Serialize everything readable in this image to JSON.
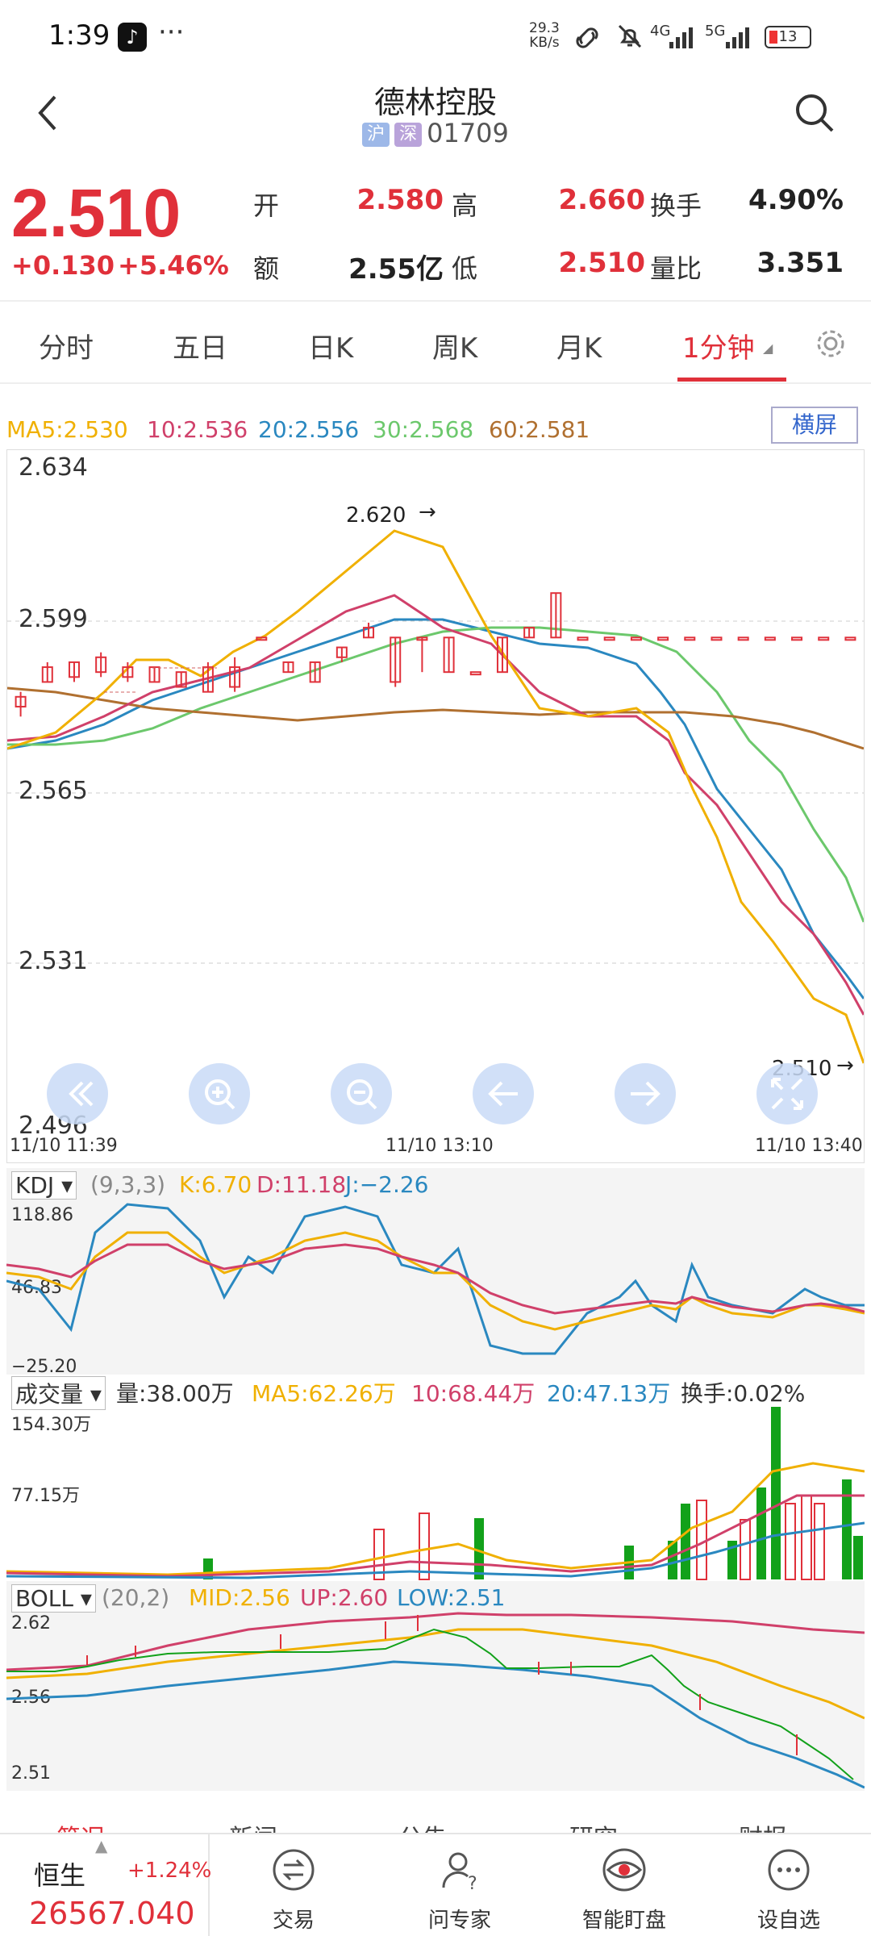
{
  "status_bar": {
    "time": "1:39",
    "dots": "···",
    "net_speed_top": "29.3",
    "net_speed_bottom": "KB/s",
    "sig4g": "4G",
    "sig5g": "5G",
    "battery": "13",
    "app_icon": "tiktok-icon"
  },
  "header": {
    "title": "德林控股",
    "tag_sh": "沪",
    "tag_sz": "深",
    "code": "01709"
  },
  "quote": {
    "price": "2.510",
    "change": "+0.130",
    "change_pct": "+5.46%",
    "open_label": "开",
    "open": "2.580",
    "high_label": "高",
    "high": "2.660",
    "turnover_label": "换手",
    "turnover": "4.90%",
    "amount_label": "额",
    "amount": "2.55亿",
    "low_label": "低",
    "low": "2.510",
    "vol_ratio_label": "量比",
    "vol_ratio": "3.351"
  },
  "tabs": [
    "分时",
    "五日",
    "日K",
    "周K",
    "月K",
    "1分钟"
  ],
  "active_tab": "1分钟",
  "ma_legend": {
    "ma5": "MA5:2.530",
    "ma10": "10:2.536",
    "ma20": "20:2.556",
    "ma30": "30:2.568",
    "ma60": "60:2.581"
  },
  "landscape_button": "横屏",
  "price_axis": [
    "2.634",
    "2.599",
    "2.565",
    "2.531",
    "2.496"
  ],
  "time_axis": [
    "11/10 11:39",
    "11/10 13:10",
    "11/10 13:40"
  ],
  "annotations": {
    "max": "2.620",
    "last": "2.510"
  },
  "kdj": {
    "name": "KDJ",
    "params": "(9,3,3)",
    "k": "K:6.70",
    "d": "D:11.18",
    "j": "J:−2.26",
    "axis": [
      "118.86",
      "46.83",
      "−25.20"
    ]
  },
  "volume": {
    "name": "成交量",
    "vol": "量:38.00万",
    "ma5": "MA5:62.26万",
    "ma10": "10:68.44万",
    "ma20": "20:47.13万",
    "turn": "换手:0.02%",
    "axis": [
      "154.30万",
      "77.15万"
    ]
  },
  "boll": {
    "name": "BOLL",
    "params": "(20,2)",
    "mid": "MID:2.56",
    "up": "UP:2.60",
    "low": "LOW:2.51",
    "axis": [
      "2.62",
      "2.56",
      "2.51"
    ]
  },
  "news_tabs": [
    "简况",
    "新闻",
    "公告",
    "研究",
    "财报"
  ],
  "bottom_nav": {
    "index_name": "恒生",
    "index_change": "+1.24%",
    "index_value": "26567.040",
    "items": [
      "交易",
      "问专家",
      "智能盯盘",
      "设自选"
    ]
  },
  "colors": {
    "up": "#e0303a",
    "down": "#12a11a",
    "ma5": "#f0b000",
    "ma10": "#d0406a",
    "ma20": "#2a88c0",
    "ma30": "#6cc86c",
    "ma60": "#b07030"
  },
  "chart_data": {
    "type": "candlestick",
    "candles": [
      [
        2.585,
        2.587,
        2.583,
        2.588
      ],
      [
        2.59,
        2.593,
        2.59,
        2.594
      ],
      [
        2.591,
        2.594,
        2.59,
        2.594
      ],
      [
        2.592,
        2.595,
        2.591,
        2.596
      ],
      [
        2.591,
        2.593,
        2.59,
        2.594
      ],
      [
        2.59,
        2.593,
        2.59,
        2.593
      ],
      [
        2.589,
        2.592,
        2.589,
        2.592
      ],
      [
        2.588,
        2.593,
        2.588,
        2.594
      ],
      [
        2.589,
        2.593,
        2.588,
        2.595
      ],
      [
        2.599,
        2.599,
        2.599,
        2.599
      ],
      [
        2.592,
        2.594,
        2.592,
        2.594
      ],
      [
        2.59,
        2.594,
        2.59,
        2.594
      ],
      [
        2.595,
        2.597,
        2.594,
        2.597
      ],
      [
        2.599,
        2.601,
        2.599,
        2.602
      ],
      [
        2.59,
        2.599,
        2.589,
        2.599
      ],
      [
        2.599,
        2.599,
        2.592,
        2.599
      ],
      [
        2.592,
        2.599,
        2.592,
        2.599
      ],
      [
        2.592,
        2.592,
        2.592,
        2.592
      ],
      [
        2.592,
        2.599,
        2.592,
        2.599
      ],
      [
        2.599,
        2.601,
        2.599,
        2.601
      ],
      [
        2.599,
        2.608,
        2.599,
        2.608
      ],
      [
        2.599,
        2.599,
        2.599,
        2.599
      ],
      [
        2.599,
        2.599,
        2.599,
        2.599
      ],
      [
        2.599,
        2.599,
        2.599,
        2.599
      ],
      [
        2.599,
        2.599,
        2.599,
        2.599
      ],
      [
        2.599,
        2.599,
        2.599,
        2.599
      ],
      [
        2.599,
        2.599,
        2.599,
        2.599
      ],
      [
        2.599,
        2.599,
        2.599,
        2.599
      ],
      [
        2.599,
        2.599,
        2.599,
        2.599
      ],
      [
        2.599,
        2.599,
        2.599,
        2.599
      ],
      [
        2.599,
        2.599,
        2.599,
        2.599
      ],
      [
        2.599,
        2.599,
        2.599,
        2.599
      ]
    ]
  }
}
